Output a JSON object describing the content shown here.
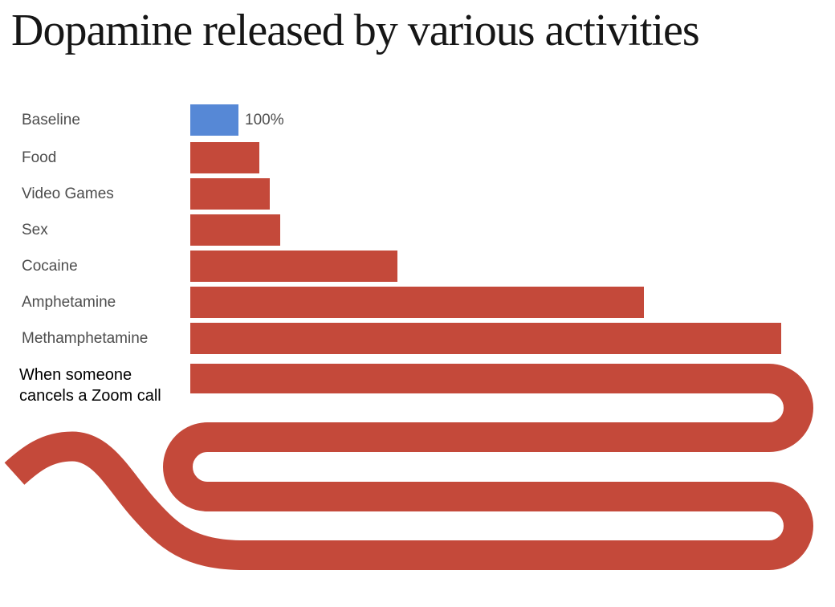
{
  "title": "Dopamine released by various activities",
  "chart_data": {
    "type": "bar",
    "orientation": "horizontal",
    "title": "Dopamine released by various activities",
    "categories": [
      "Baseline",
      "Food",
      "Video Games",
      "Sex",
      "Cocaine",
      "Amphetamine",
      "Methamphetamine",
      "When someone cancels a Zoom call"
    ],
    "values_percent_of_baseline": [
      100,
      143,
      165,
      187,
      430,
      942,
      1227,
      null
    ],
    "value_labels": [
      "100%",
      "",
      "",
      "",
      "",
      "",
      "",
      ""
    ],
    "baseline_value_label": "100%",
    "off_chart_category": "When someone cancels a Zoom call",
    "off_chart_note": "Bar exceeds the chart width, snakes back and forth in four folded rows and trails off in a squiggle tail",
    "legend": "none",
    "axes": "none",
    "colors": {
      "baseline_bar": "#5688d6",
      "bar": "#c4493a",
      "category_label_text": "#4d4d4d",
      "title_text": "#161616",
      "annotation_text": "#000000",
      "background": "#ffffff"
    }
  },
  "annotation": {
    "line1": "When someone",
    "line2": "cancels a Zoom call"
  }
}
